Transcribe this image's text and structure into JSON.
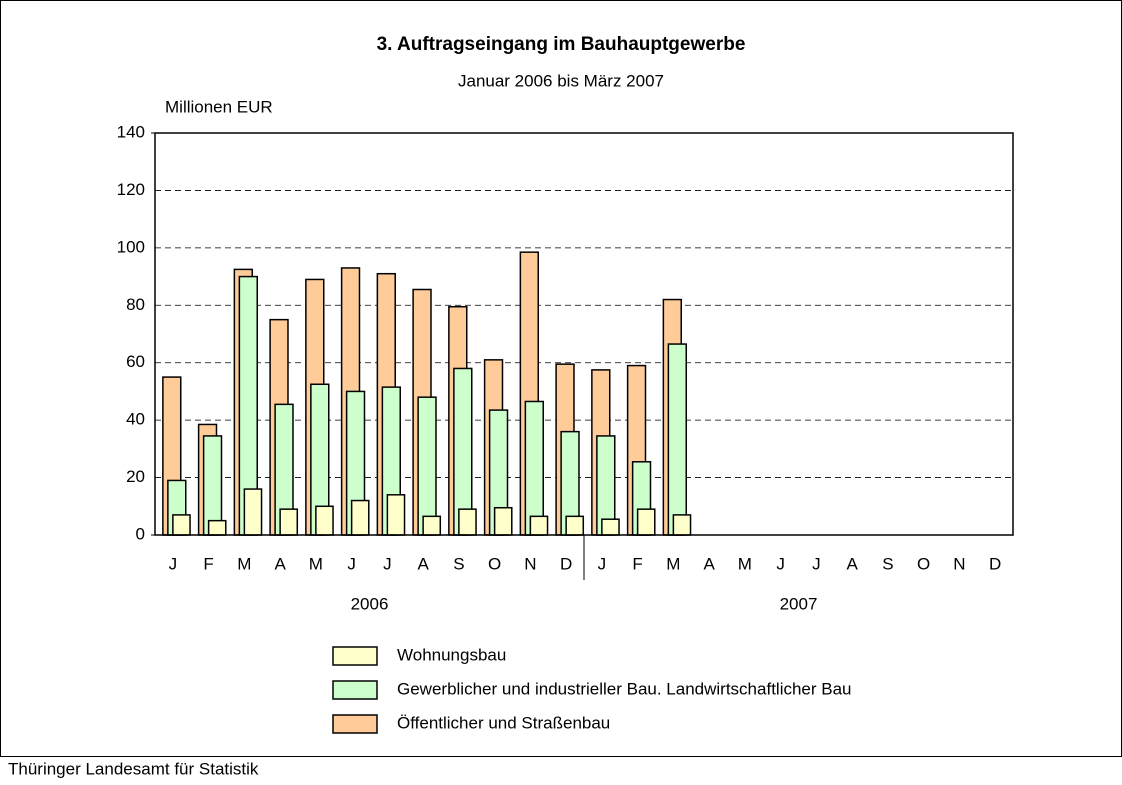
{
  "chart_data": {
    "type": "bar",
    "mode": "overlap",
    "title": "3. Auftragseingang im Bauhauptgewerbe",
    "subtitle": "Januar 2006 bis März 2007",
    "y_label": "Millionen EUR",
    "categories": [
      "J",
      "F",
      "M",
      "A",
      "M",
      "J",
      "J",
      "A",
      "S",
      "O",
      "N",
      "D",
      "J",
      "F",
      "M",
      "A",
      "M",
      "J",
      "J",
      "A",
      "S",
      "O",
      "N",
      "D"
    ],
    "x_groups": [
      "2006",
      "2007"
    ],
    "series": [
      {
        "name": "Wohnungsbau",
        "color": "#ffffcc",
        "values": [
          7,
          5,
          16,
          9,
          10,
          12,
          14,
          6.5,
          9,
          9.5,
          6.5,
          6.5,
          5.5,
          9,
          7,
          null,
          null,
          null,
          null,
          null,
          null,
          null,
          null,
          null
        ]
      },
      {
        "name": "Gewerblicher und industrieller Bau. Landwirtschaftlicher Bau",
        "color": "#ccffcc",
        "values": [
          19,
          34.5,
          90,
          45.5,
          52.5,
          50,
          51.5,
          48,
          58,
          43.5,
          46.5,
          36,
          34.5,
          25.5,
          66.5,
          null,
          null,
          null,
          null,
          null,
          null,
          null,
          null,
          null
        ]
      },
      {
        "name": "Öffentlicher und Straßenbau",
        "color": "#ffcc99",
        "values": [
          55,
          38.5,
          92.5,
          75,
          89,
          93,
          91,
          85.5,
          79.5,
          61,
          98.5,
          59.5,
          57.5,
          59,
          82,
          null,
          null,
          null,
          null,
          null,
          null,
          null,
          null,
          null
        ]
      }
    ],
    "ylim": [
      0,
      140
    ],
    "yticks": [
      0,
      20,
      40,
      60,
      80,
      100,
      120,
      140
    ],
    "grid": true,
    "legend": "bottom",
    "source": "Thüringer Landesamt für Statistik"
  }
}
